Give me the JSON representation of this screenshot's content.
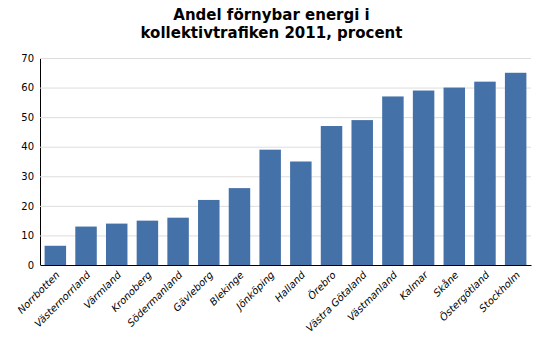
{
  "chart_data": {
    "type": "bar",
    "title": "Andel förnybar energi i\nkollektivtrafiken 2011, procent",
    "categories": [
      "Norrbotten",
      "Västernorrland",
      "Värmland",
      "Kronoberg",
      "Södermanland",
      "Gävleborg",
      "Blekinge",
      "Jönköping",
      "Halland",
      "Örebro",
      "Västra Götaland",
      "Västmanland",
      "Kalmar",
      "Skåne",
      "Östergötland",
      "Stockholm"
    ],
    "values": [
      6.5,
      13,
      14,
      15,
      16,
      22,
      26,
      39,
      35,
      47,
      49,
      57,
      59,
      60,
      62,
      65
    ],
    "color": "#4472A8",
    "ylim": [
      0,
      70
    ],
    "yticks": [
      0,
      10,
      20,
      30,
      40,
      50,
      60,
      70
    ],
    "grid": true
  }
}
